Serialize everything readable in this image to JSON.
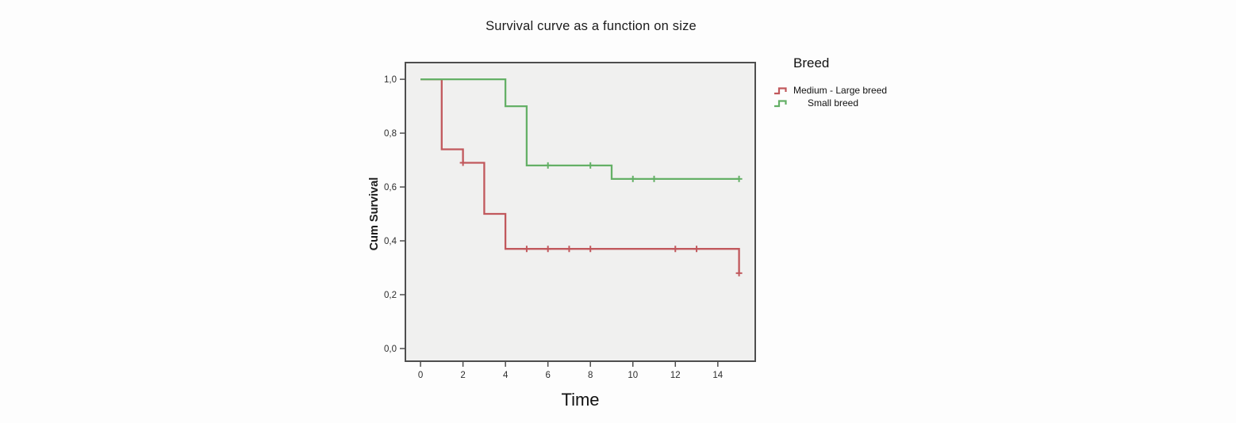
{
  "chart_data": {
    "type": "line",
    "chart_style": "kaplan-meier-step",
    "title": "Survival curve as a function on size",
    "xlabel": "Time",
    "ylabel": "Cum Survival",
    "legend_title": "Breed",
    "legend_position": "right",
    "grid": false,
    "plot_bg": "#f0f0ef",
    "frame_color": "#4e4e4e",
    "tick_label_color": "#2d2d2d",
    "xlim": [
      -0.75,
      15.8
    ],
    "ylim": [
      -0.05,
      1.065
    ],
    "x_ticks": {
      "values": [
        0,
        2,
        4,
        6,
        8,
        10,
        12,
        14
      ],
      "labels": [
        "0",
        "2",
        "4",
        "6",
        "8",
        "10",
        "12",
        "14"
      ]
    },
    "y_ticks": {
      "values": [
        0.0,
        0.2,
        0.4,
        0.6,
        0.8,
        1.0
      ],
      "labels": [
        "0,0",
        "0,2",
        "0,4",
        "0,6",
        "0,8",
        "1,0"
      ]
    },
    "series": [
      {
        "name": "Medium - Large breed",
        "color": "#c1585c",
        "steps": [
          [
            0,
            1.0
          ],
          [
            1,
            1.0
          ],
          [
            1,
            0.74
          ],
          [
            2,
            0.74
          ],
          [
            2,
            0.69
          ],
          [
            3,
            0.69
          ],
          [
            3,
            0.5
          ],
          [
            4,
            0.5
          ],
          [
            4,
            0.37
          ],
          [
            15,
            0.37
          ],
          [
            15,
            0.28
          ]
        ],
        "censored_points": [
          [
            2,
            0.69
          ],
          [
            5,
            0.37
          ],
          [
            6,
            0.37
          ],
          [
            7,
            0.37
          ],
          [
            8,
            0.37
          ],
          [
            12,
            0.37
          ],
          [
            13,
            0.37
          ],
          [
            15,
            0.28
          ]
        ]
      },
      {
        "name": "Small breed",
        "color": "#64b066",
        "steps": [
          [
            0,
            1.0
          ],
          [
            4,
            1.0
          ],
          [
            4,
            0.9
          ],
          [
            5,
            0.9
          ],
          [
            5,
            0.68
          ],
          [
            9,
            0.68
          ],
          [
            9,
            0.63
          ],
          [
            15,
            0.63
          ]
        ],
        "censored_points": [
          [
            6,
            0.68
          ],
          [
            8,
            0.68
          ],
          [
            10,
            0.63
          ],
          [
            11,
            0.63
          ],
          [
            15,
            0.63
          ]
        ]
      }
    ]
  }
}
